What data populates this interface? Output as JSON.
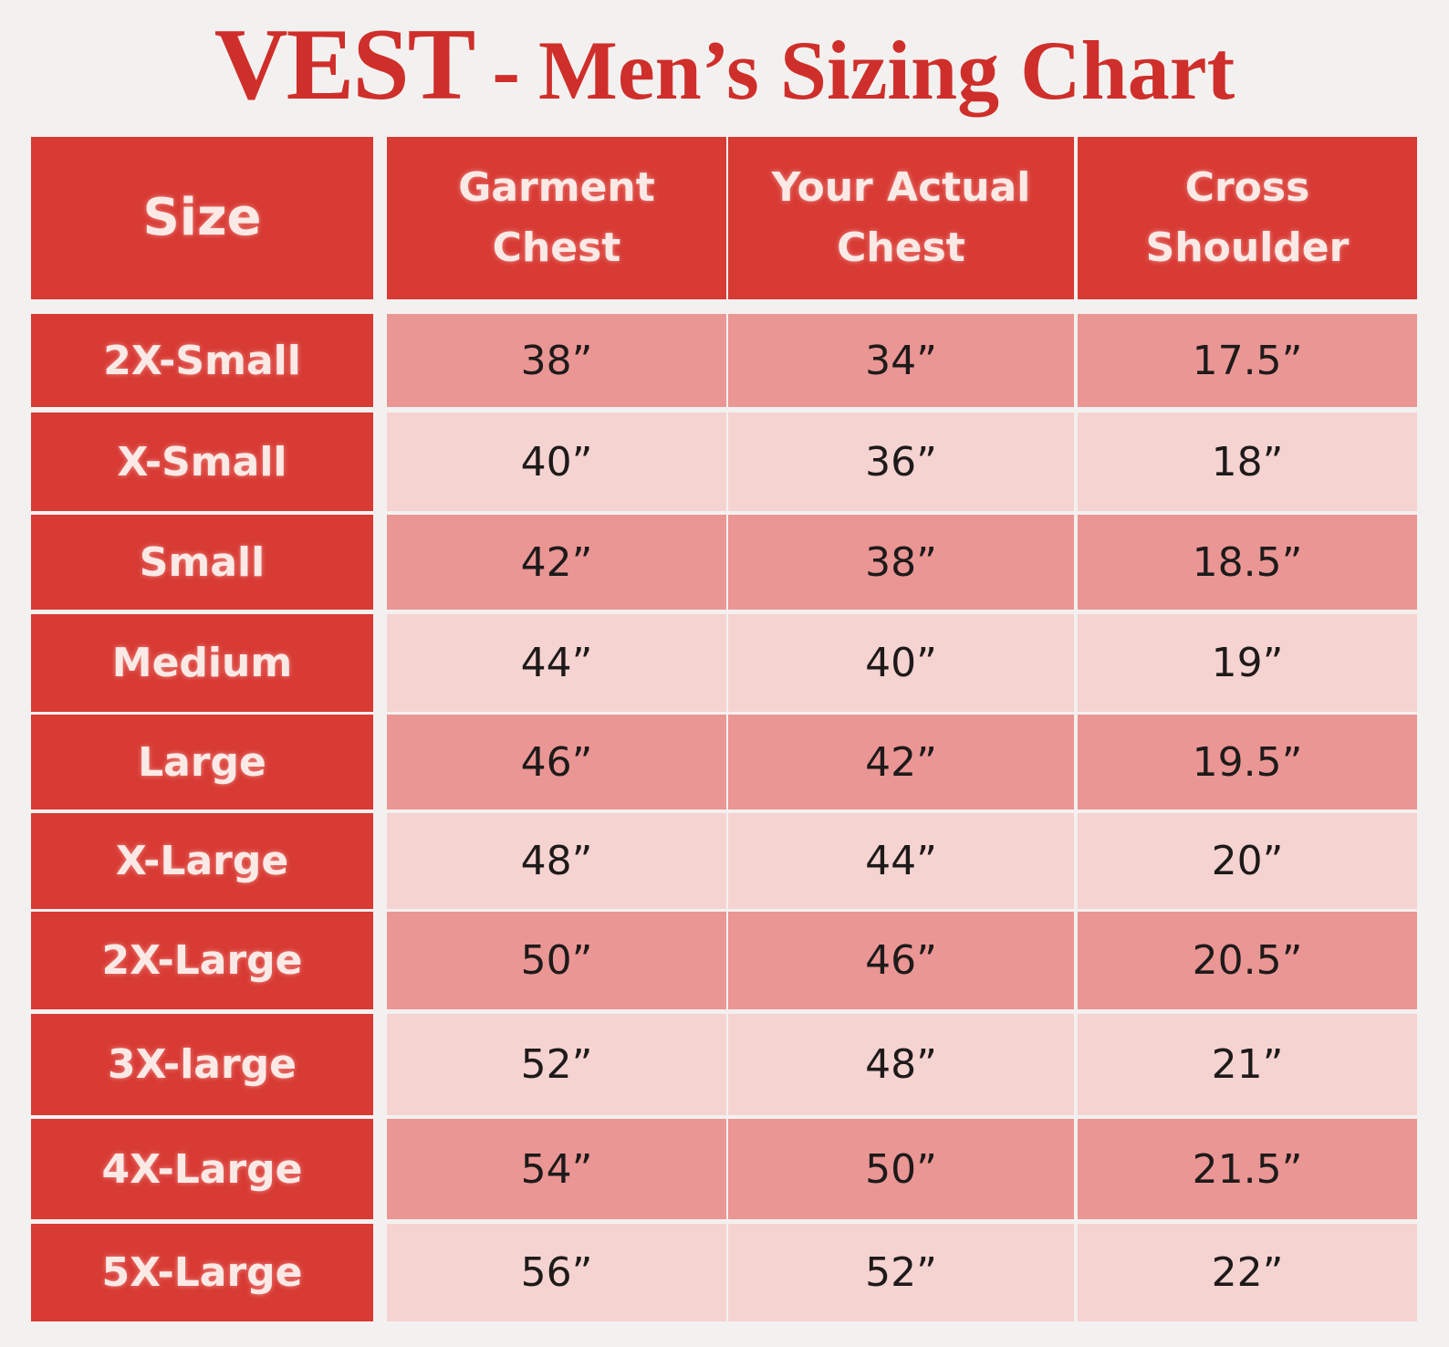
{
  "title": {
    "brand": "VEST",
    "separator": "-",
    "rest": "Men’s Sizing Chart"
  },
  "chart_data": {
    "type": "table",
    "title": "VEST - Men’s Sizing Chart",
    "columns": [
      "Size",
      "Garment\nChest",
      "Your Actual\nChest",
      "Cross\nShoulder"
    ],
    "rows": [
      [
        "2X-Small",
        "38”",
        "34”",
        "17.5”"
      ],
      [
        "X-Small",
        "40”",
        "36”",
        "18”"
      ],
      [
        "Small",
        "42”",
        "38”",
        "18.5”"
      ],
      [
        "Medium",
        "44”",
        "40”",
        "19”"
      ],
      [
        "Large",
        "46”",
        "42”",
        "19.5”"
      ],
      [
        "X-Large",
        "48”",
        "44”",
        "20”"
      ],
      [
        "2X-Large",
        "50”",
        "46”",
        "20.5”"
      ],
      [
        "3X-large",
        "52”",
        "48”",
        "21”"
      ],
      [
        "4X-Large",
        "54”",
        "50”",
        "21.5”"
      ],
      [
        "5X-Large",
        "56”",
        "52”",
        "22”"
      ]
    ]
  },
  "colors": {
    "header_red": "#d83a34",
    "title_red": "#cf2f2b",
    "row_dark": "#ea9694",
    "row_light": "#f5d3d1",
    "background": "#f3f1f0"
  }
}
